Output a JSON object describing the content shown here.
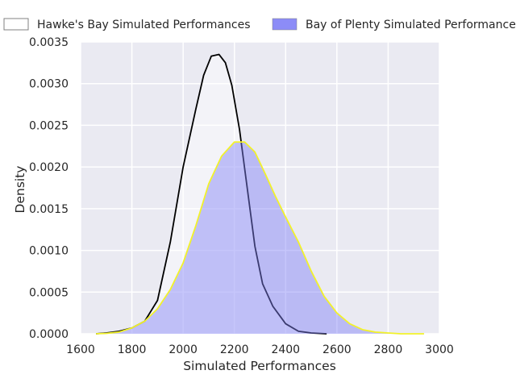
{
  "chart_data": {
    "type": "area",
    "title": "",
    "xlabel": "Simulated Performances",
    "ylabel": "Density",
    "xlim": [
      1600,
      3000
    ],
    "ylim": [
      0,
      0.0035
    ],
    "xticks": [
      1600,
      1800,
      2000,
      2200,
      2400,
      2600,
      2800,
      3000
    ],
    "yticks": [
      0.0,
      0.0005,
      0.001,
      0.0015,
      0.002,
      0.0025,
      0.003,
      0.0035
    ],
    "ytick_labels": [
      "0.0000",
      "0.0005",
      "0.0010",
      "0.0015",
      "0.0020",
      "0.0025",
      "0.0030",
      "0.0035"
    ],
    "grid": true,
    "legend_position": "top",
    "series": [
      {
        "name": "Hawke's Bay Simulated Performances",
        "fill": "#ffffff",
        "fill_opacity": 0.45,
        "line_color": "#000000",
        "x": [
          1660,
          1700,
          1750,
          1800,
          1850,
          1900,
          1950,
          2000,
          2050,
          2080,
          2110,
          2140,
          2165,
          2190,
          2220,
          2250,
          2280,
          2310,
          2350,
          2400,
          2450,
          2500,
          2560
        ],
        "y": [
          0.0,
          1e-05,
          3e-05,
          7e-05,
          0.00015,
          0.0004,
          0.0011,
          0.002,
          0.0027,
          0.0031,
          0.00333,
          0.00335,
          0.00325,
          0.00298,
          0.00245,
          0.00175,
          0.00105,
          0.0006,
          0.00033,
          0.00012,
          3e-05,
          1e-05,
          0.0
        ]
      },
      {
        "name": "Bay of Plenty Simulated Performances",
        "fill": "#8080f7",
        "fill_opacity": 0.45,
        "line_color": "#f2f22a",
        "x": [
          1660,
          1700,
          1750,
          1800,
          1850,
          1900,
          1950,
          2000,
          2050,
          2100,
          2150,
          2200,
          2240,
          2280,
          2320,
          2360,
          2400,
          2450,
          2500,
          2550,
          2600,
          2650,
          2700,
          2750,
          2800,
          2850,
          2900,
          2940
        ],
        "y": [
          0.0,
          5e-06,
          2e-05,
          7e-05,
          0.00015,
          0.0003,
          0.00053,
          0.00085,
          0.0013,
          0.0018,
          0.00213,
          0.0023,
          0.0023,
          0.00218,
          0.00192,
          0.00165,
          0.0014,
          0.0011,
          0.00075,
          0.00045,
          0.00025,
          0.00012,
          5e-05,
          2e-05,
          1e-05,
          0.0,
          0.0,
          0.0
        ]
      }
    ]
  }
}
